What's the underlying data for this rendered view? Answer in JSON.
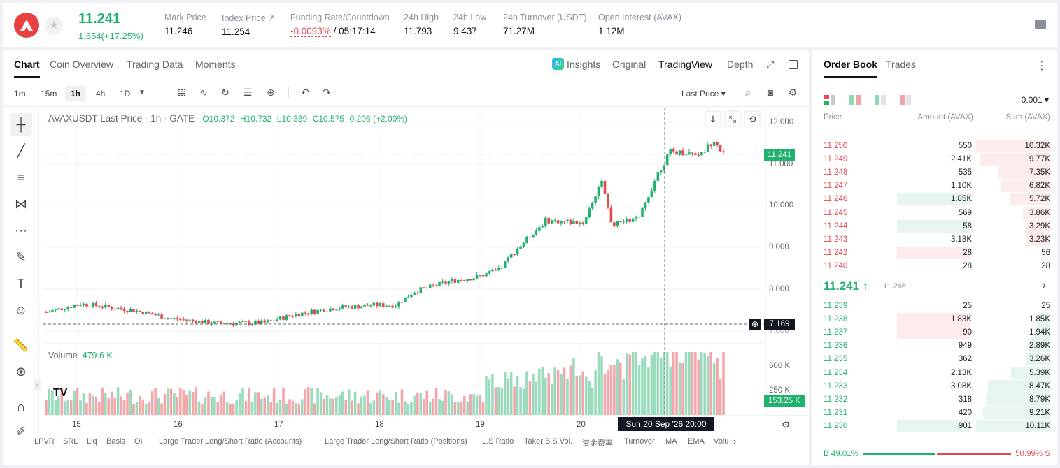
{
  "header": {
    "last_price": "11.241",
    "change": "1.654(+17.25%)",
    "stats": [
      {
        "label": "Mark Price",
        "value": "11.246"
      },
      {
        "label": "Index Price ↗",
        "value": "11.254"
      },
      {
        "label": "Funding Rate/Countdown",
        "value_a": "-0.0093%",
        "value_b": "/ 05:17:14"
      },
      {
        "label": "24h High",
        "value": "11.793"
      },
      {
        "label": "24h Low",
        "value": "9.437"
      },
      {
        "label": "24h Turnover (USDT)",
        "value": "71.27M"
      },
      {
        "label": "Open Interest (AVAX)",
        "value": "1.12M"
      }
    ]
  },
  "chart_tabs": [
    "Chart",
    "Coin Overview",
    "Trading Data",
    "Moments"
  ],
  "view_tabs": [
    "Insights",
    "Original",
    "TradingView",
    "Depth"
  ],
  "timeframes": [
    "1m",
    "15m",
    "1h",
    "4h",
    "1D"
  ],
  "price_type": "Last Price",
  "legend": {
    "symbol": "AVAXUSDT Last Price · 1h · GATE",
    "open": "O10.372",
    "high": "H10.732",
    "low": "L10.339",
    "close": "C10.575",
    "change": "0.206 (+2.00%)"
  },
  "volume_legend": {
    "label": "Volume",
    "value": "479.6 K"
  },
  "price_axis": [
    "12.000",
    "11.000",
    "10.000",
    "9.000",
    "8.000",
    "7.000"
  ],
  "volume_axis": [
    "500 K",
    "250 K"
  ],
  "price_tags": {
    "last": "11.241",
    "cursor": "7.169",
    "volume": "153.25 K"
  },
  "date_axis": [
    "15",
    "16",
    "17",
    "18",
    "19",
    "20"
  ],
  "crosshair_date": "Sun 20 Sep '26   20:00",
  "indicators": [
    "LPVR",
    "SRL",
    "Liq",
    "Basis",
    "OI",
    "Large Trader Long/Short Ratio (Accounts)",
    "Large Trader Long/Short Ratio (Positions)",
    "L.S Ratio",
    "Taker B.S Vol.",
    "资金费率",
    "Turnover",
    "MA",
    "EMA",
    "Volu"
  ],
  "orderbook": {
    "tabs": [
      "Order Book",
      "Trades"
    ],
    "precision": "0.001",
    "headers": [
      "Price",
      "Amount (AVAX)",
      "Sum (AVAX)"
    ],
    "asks": [
      {
        "price": "11.250",
        "amount": "550",
        "sum": "10.32K",
        "amt_frac": 0,
        "sum_frac": 1.0
      },
      {
        "price": "11.249",
        "amount": "2.41K",
        "sum": "9.77K",
        "amt_frac": 0,
        "sum_frac": 0.95
      },
      {
        "price": "11.248",
        "amount": "535",
        "sum": "7.35K",
        "amt_frac": 0,
        "sum_frac": 0.71
      },
      {
        "price": "11.247",
        "amount": "1.10K",
        "sum": "6.82K",
        "amt_frac": 0,
        "sum_frac": 0.66
      },
      {
        "price": "11.246",
        "amount": "1.85K",
        "sum": "5.72K",
        "amt_frac": 1,
        "sum_frac": 0.55
      },
      {
        "price": "11.245",
        "amount": "569",
        "sum": "3.86K",
        "amt_frac": 0,
        "sum_frac": 0.37
      },
      {
        "price": "11.244",
        "amount": "58",
        "sum": "3.29K",
        "amt_frac": 1,
        "sum_frac": 0.32
      },
      {
        "price": "11.243",
        "amount": "3.18K",
        "sum": "3.23K",
        "amt_frac": 0,
        "sum_frac": 0.31
      },
      {
        "price": "11.242",
        "amount": "28",
        "sum": "56",
        "amt_frac": 2,
        "sum_frac": 0
      },
      {
        "price": "11.240",
        "amount": "28",
        "sum": "28",
        "amt_frac": 0,
        "sum_frac": 0
      }
    ],
    "mid_price": "11.241 ↑",
    "mark_price": "11.246",
    "bids": [
      {
        "price": "11.239",
        "amount": "25",
        "sum": "25",
        "amt_frac": 0,
        "sum_frac": 0
      },
      {
        "price": "11.238",
        "amount": "1.83K",
        "sum": "1.85K",
        "amt_frac": 2,
        "sum_frac": 0.18
      },
      {
        "price": "11.237",
        "amount": "90",
        "sum": "1.94K",
        "amt_frac": 2,
        "sum_frac": 0.19
      },
      {
        "price": "11.236",
        "amount": "949",
        "sum": "2.89K",
        "amt_frac": 0,
        "sum_frac": 0.28
      },
      {
        "price": "11.235",
        "amount": "362",
        "sum": "3.26K",
        "amt_frac": 0,
        "sum_frac": 0.32
      },
      {
        "price": "11.234",
        "amount": "2.13K",
        "sum": "5.39K",
        "amt_frac": 0,
        "sum_frac": 0.53
      },
      {
        "price": "11.233",
        "amount": "3.08K",
        "sum": "8.47K",
        "amt_frac": 0,
        "sum_frac": 0.84
      },
      {
        "price": "11.232",
        "amount": "318",
        "sum": "8.79K",
        "amt_frac": 0,
        "sum_frac": 0.87
      },
      {
        "price": "11.231",
        "amount": "420",
        "sum": "9.21K",
        "amt_frac": 0,
        "sum_frac": 0.91
      },
      {
        "price": "11.230",
        "amount": "901",
        "sum": "10.11K",
        "amt_frac": 1,
        "sum_frac": 1.0
      }
    ],
    "buy_ratio": "B 49.01%",
    "sell_ratio": "50.99% S"
  },
  "colors": {
    "up": "#20b26c",
    "down": "#e5484d"
  }
}
